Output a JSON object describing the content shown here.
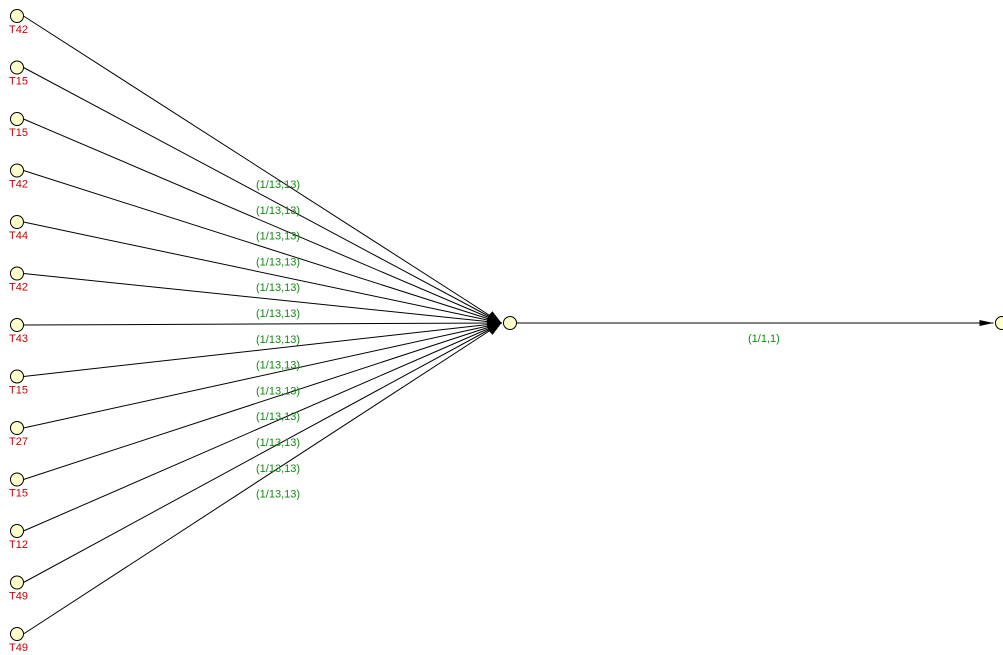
{
  "diagram": {
    "source_nodes": [
      {
        "label": "T42"
      },
      {
        "label": "T15"
      },
      {
        "label": "T15"
      },
      {
        "label": "T42"
      },
      {
        "label": "T44"
      },
      {
        "label": "T42"
      },
      {
        "label": "T43"
      },
      {
        "label": "T15"
      },
      {
        "label": "T27"
      },
      {
        "label": "T15"
      },
      {
        "label": "T12"
      },
      {
        "label": "T49"
      },
      {
        "label": "T49"
      }
    ],
    "fan_in_edge_labels": [
      "(1/13,13)",
      "(1/13,13)",
      "(1/13,13)",
      "(1/13,13)",
      "(1/13,13)",
      "(1/13,13)",
      "(1/13,13)",
      "(1/13,13)",
      "(1/13,13)",
      "(1/13,13)",
      "(1/13,13)",
      "(1/13,13)",
      "(1/13,13)"
    ],
    "hub_to_target_edge_label": "(1/1,1)",
    "colors": {
      "node_fill": "#ffffcc",
      "node_label": "#cc0000",
      "edge_label": "#138a13",
      "edge": "#000000"
    }
  }
}
